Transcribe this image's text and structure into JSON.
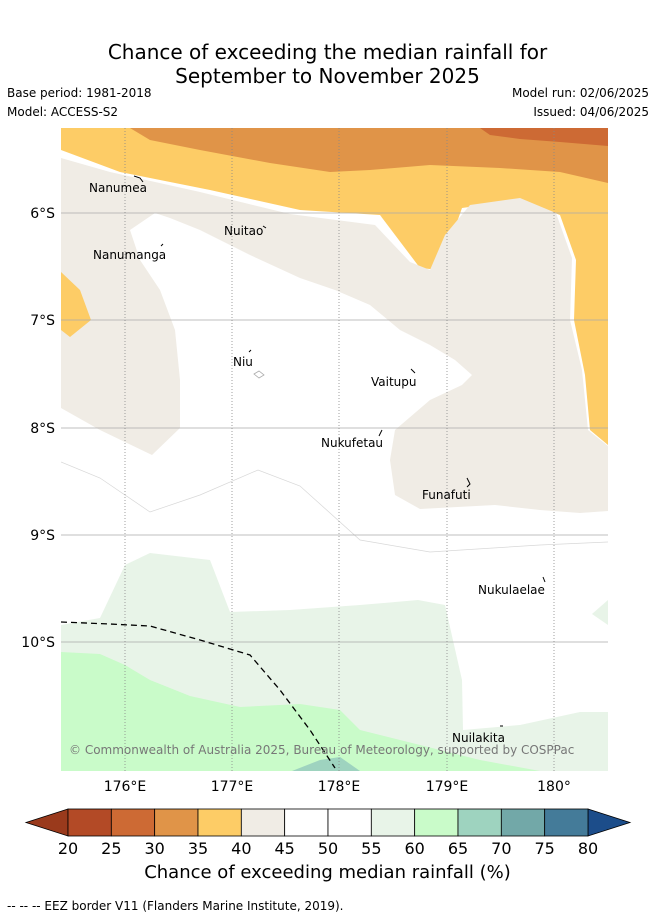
{
  "title_line1": "Chance of exceeding the median rainfall for",
  "title_line2": "September to November 2025",
  "base_period": "Base period: 1981-2018",
  "model": "Model: ACCESS-S2",
  "model_run": "Model run: 02/06/2025",
  "issued": "Issued: 04/06/2025",
  "copyright": "© Commonwealth of Australia 2025, Bureau of Meteorology, supported by COSPPac",
  "lat_labels": [
    "6°S",
    "7°S",
    "8°S",
    "9°S",
    "10°S"
  ],
  "lon_labels": [
    "176°E",
    "177°E",
    "178°E",
    "179°E",
    "180°"
  ],
  "places": [
    "Nanumea",
    "Nuitao",
    "Nanumanga",
    "Niu",
    "Vaitupu",
    "Nukufetau",
    "Funafuti",
    "Nukulaelae",
    "Nuilakita"
  ],
  "colorbar": {
    "ticks": [
      "20",
      "25",
      "30",
      "35",
      "40",
      "45",
      "50",
      "55",
      "60",
      "65",
      "70",
      "75",
      "80"
    ],
    "colors": [
      "#b34a26",
      "#cd6a34",
      "#e09448",
      "#fdcc66",
      "#f0ece5",
      "#ffffff",
      "#ffffff",
      "#e8f4e8",
      "#c9fbc9",
      "#9ed3bf",
      "#72a8a8",
      "#447b99"
    ],
    "under_color": "#9a3a1c",
    "over_color": "#1c4d8a",
    "title": "Chance of exceeding median rainfall (%)"
  },
  "legend_footer": "-- -- -- EEZ border V11 (Flanders Marine Institute, 2019)."
}
